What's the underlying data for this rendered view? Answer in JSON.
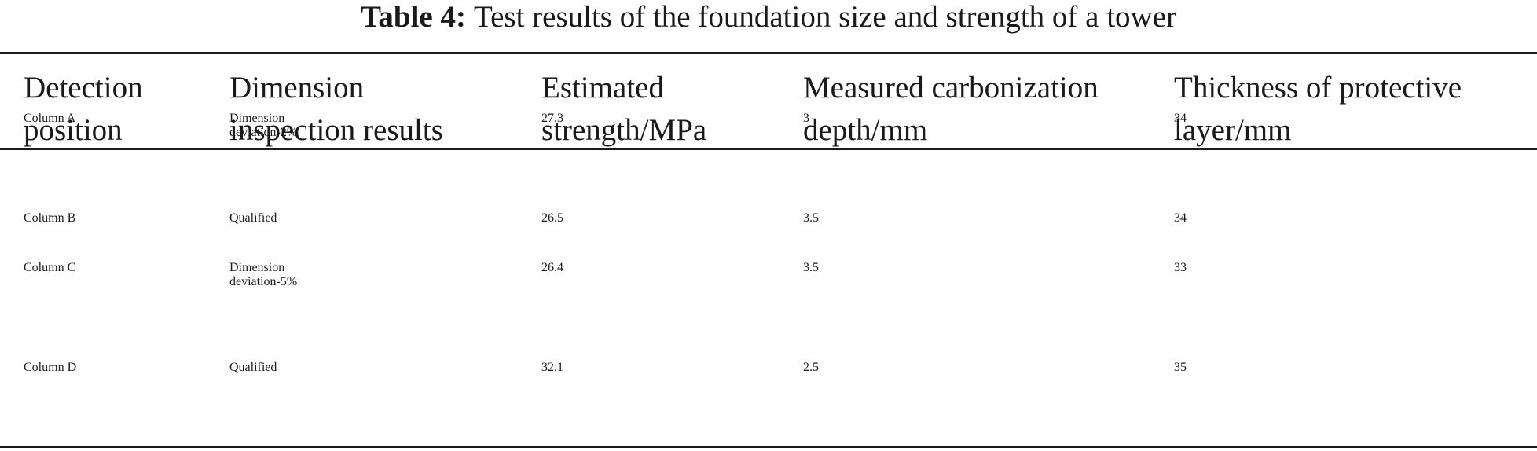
{
  "caption": {
    "label": "Table 4:",
    "text": "Test results of the foundation size and strength of a tower"
  },
  "table": {
    "headers": [
      "Detection\nposition",
      "Dimension\ninspection results",
      "Estimated\nstrength/MPa",
      "Measured carbonization\ndepth/mm",
      "Thickness of protective\nlayer/mm"
    ],
    "rows": [
      [
        "Column A",
        "Dimension\ndeviation-2%",
        "27.3",
        "3",
        "34"
      ],
      [
        "Column B",
        "Qualified",
        "26.5",
        "3.5",
        "34"
      ],
      [
        "Column C",
        "Dimension\ndeviation-5%",
        "26.4",
        "3.5",
        "33"
      ],
      [
        "Column D",
        "Qualified",
        "32.1",
        "2.5",
        "35"
      ]
    ]
  }
}
